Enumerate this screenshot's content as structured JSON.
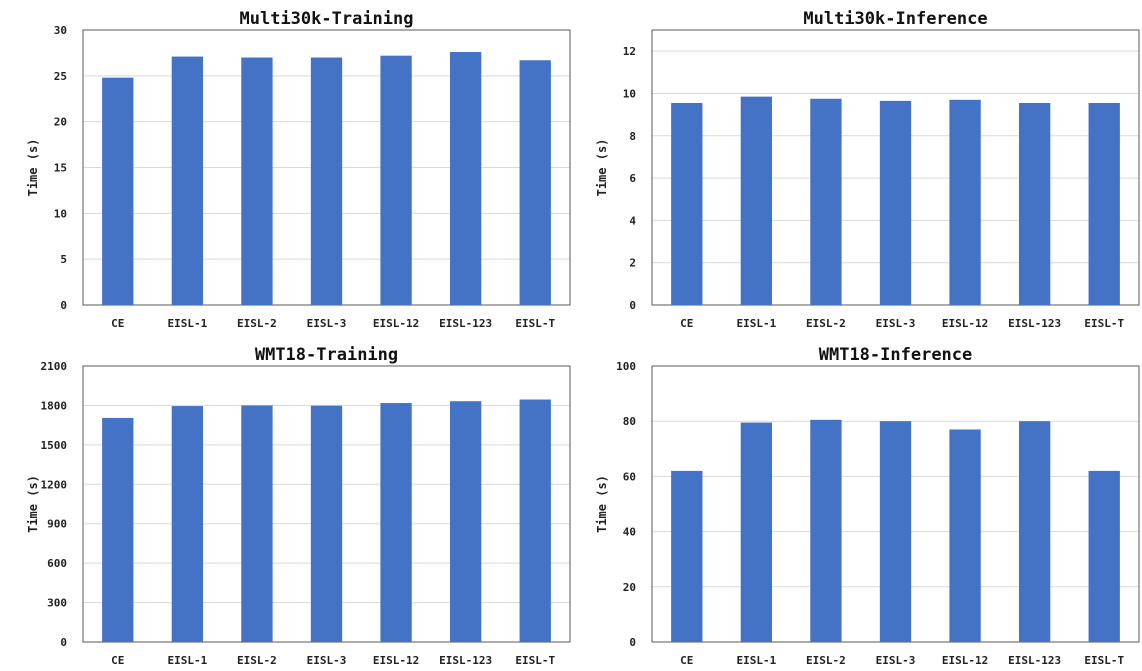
{
  "chart_data": [
    {
      "type": "bar",
      "title": "Multi30k-Training",
      "ylabel": "Time (s)",
      "categories": [
        "CE",
        "EISL-1",
        "EISL-2",
        "EISL-3",
        "EISL-12",
        "EISL-123",
        "EISL-T"
      ],
      "values": [
        24.8,
        27.1,
        27.0,
        27.0,
        27.2,
        27.6,
        26.7
      ],
      "ylim": [
        0,
        30
      ],
      "yticks": [
        0,
        5,
        10,
        15,
        20,
        25,
        30
      ],
      "grid": true,
      "bar_color": "#4472C4"
    },
    {
      "type": "bar",
      "title": "Multi30k-Inference",
      "ylabel": "Time (s)",
      "categories": [
        "CE",
        "EISL-1",
        "EISL-2",
        "EISL-3",
        "EISL-12",
        "EISL-123",
        "EISL-T"
      ],
      "values": [
        9.55,
        9.85,
        9.75,
        9.65,
        9.7,
        9.55,
        9.55
      ],
      "ylim": [
        0,
        13
      ],
      "yticks": [
        0,
        2,
        4,
        6,
        8,
        10,
        12
      ],
      "grid": true,
      "bar_color": "#4472C4"
    },
    {
      "type": "bar",
      "title": "WMT18-Training",
      "ylabel": "Time (s)",
      "categories": [
        "CE",
        "EISL-1",
        "EISL-2",
        "EISL-3",
        "EISL-12",
        "EISL-123",
        "EISL-T"
      ],
      "values": [
        1705,
        1795,
        1800,
        1798,
        1818,
        1832,
        1845
      ],
      "ylim": [
        0,
        2100
      ],
      "yticks": [
        0,
        300,
        600,
        900,
        1200,
        1500,
        1800,
        2100
      ],
      "grid": true,
      "bar_color": "#4472C4"
    },
    {
      "type": "bar",
      "title": "WMT18-Inference",
      "ylabel": "Time (s)",
      "categories": [
        "CE",
        "EISL-1",
        "EISL-2",
        "EISL-3",
        "EISL-12",
        "EISL-123",
        "EISL-T"
      ],
      "values": [
        62,
        79.5,
        80.5,
        80,
        77,
        80,
        62
      ],
      "ylim": [
        0,
        100
      ],
      "yticks": [
        0,
        20,
        40,
        60,
        80,
        100
      ],
      "grid": true,
      "bar_color": "#4472C4"
    }
  ]
}
